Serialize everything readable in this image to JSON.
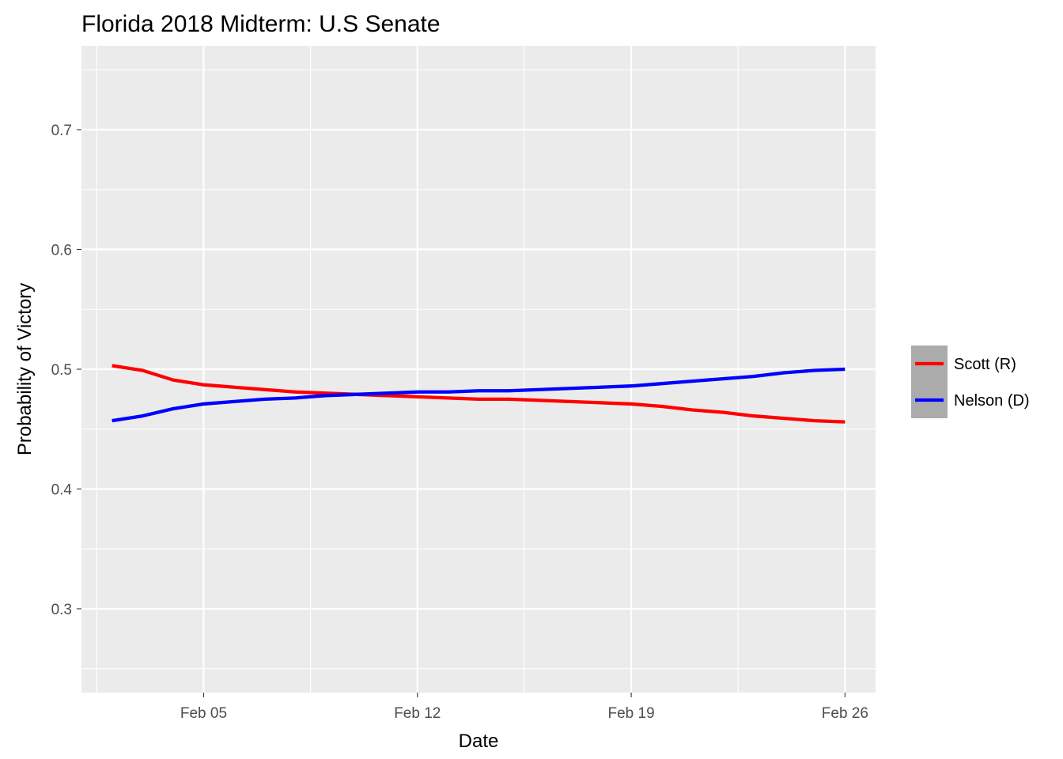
{
  "chart_data": {
    "type": "line",
    "title": "Florida 2018 Midterm: U.S Senate",
    "xlabel": "Date",
    "ylabel": "Probability of Victory",
    "x_range": [
      "2018-02-01",
      "2018-02-27"
    ],
    "ylim": [
      0.23,
      0.77
    ],
    "x_ticks": [
      {
        "date": "2018-02-05",
        "label": "Feb 05"
      },
      {
        "date": "2018-02-12",
        "label": "Feb 12"
      },
      {
        "date": "2018-02-19",
        "label": "Feb 19"
      },
      {
        "date": "2018-02-26",
        "label": "Feb 26"
      }
    ],
    "y_ticks": [
      {
        "value": 0.3,
        "label": "0.3"
      },
      {
        "value": 0.4,
        "label": "0.4"
      },
      {
        "value": 0.5,
        "label": "0.5"
      },
      {
        "value": 0.6,
        "label": "0.6"
      },
      {
        "value": 0.7,
        "label": "0.7"
      }
    ],
    "grid": true,
    "legend_position": "right",
    "background_color": "#ebebeb",
    "x": [
      "2018-02-02",
      "2018-02-03",
      "2018-02-04",
      "2018-02-05",
      "2018-02-06",
      "2018-02-07",
      "2018-02-08",
      "2018-02-09",
      "2018-02-10",
      "2018-02-11",
      "2018-02-12",
      "2018-02-13",
      "2018-02-14",
      "2018-02-15",
      "2018-02-16",
      "2018-02-17",
      "2018-02-18",
      "2018-02-19",
      "2018-02-20",
      "2018-02-21",
      "2018-02-22",
      "2018-02-23",
      "2018-02-24",
      "2018-02-25",
      "2018-02-26"
    ],
    "series": [
      {
        "name": "Scott (R)",
        "color": "#ff0000",
        "values": [
          0.503,
          0.499,
          0.491,
          0.487,
          0.485,
          0.483,
          0.481,
          0.48,
          0.479,
          0.478,
          0.477,
          0.476,
          0.475,
          0.475,
          0.474,
          0.473,
          0.472,
          0.471,
          0.469,
          0.466,
          0.464,
          0.461,
          0.459,
          0.457,
          0.456
        ]
      },
      {
        "name": "Nelson (D)",
        "color": "#0000ff",
        "values": [
          0.457,
          0.461,
          0.467,
          0.471,
          0.473,
          0.475,
          0.476,
          0.478,
          0.479,
          0.48,
          0.481,
          0.481,
          0.482,
          0.482,
          0.483,
          0.484,
          0.485,
          0.486,
          0.488,
          0.49,
          0.492,
          0.494,
          0.497,
          0.499,
          0.5
        ]
      }
    ]
  }
}
